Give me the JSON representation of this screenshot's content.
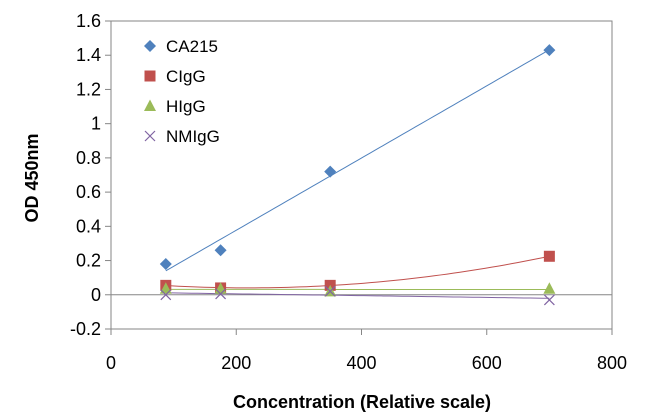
{
  "chart_data": {
    "type": "scatter",
    "title": "",
    "xlabel": "Concentration (Relative scale)",
    "ylabel": "OD 450nm",
    "xlim": [
      0,
      800
    ],
    "ylim": [
      -0.2,
      1.6
    ],
    "x_ticks": [
      "0",
      "200",
      "400",
      "600",
      "800"
    ],
    "y_ticks": [
      "-0.2",
      "0",
      "0.2",
      "0.4",
      "0.6",
      "0.8",
      "1",
      "1.2",
      "1.4",
      "1.6"
    ],
    "grid": false,
    "legend_position": "top-left",
    "series": [
      {
        "name": "CA215",
        "marker": "diamond",
        "color": "#4F81BD",
        "trendline": "linear",
        "points": [
          {
            "x": 87.5,
            "y": 0.18
          },
          {
            "x": 175,
            "y": 0.26
          },
          {
            "x": 350,
            "y": 0.72
          },
          {
            "x": 700,
            "y": 1.43
          }
        ]
      },
      {
        "name": "CIgG",
        "marker": "square",
        "color": "#C0504D",
        "trendline": "polynomial",
        "points": [
          {
            "x": 87.5,
            "y": 0.055
          },
          {
            "x": 175,
            "y": 0.04
          },
          {
            "x": 350,
            "y": 0.055
          },
          {
            "x": 700,
            "y": 0.225
          }
        ]
      },
      {
        "name": "HIgG",
        "marker": "triangle",
        "color": "#9BBB59",
        "trendline": "linear",
        "points": [
          {
            "x": 87.5,
            "y": 0.035
          },
          {
            "x": 175,
            "y": 0.035
          },
          {
            "x": 350,
            "y": 0.02
          },
          {
            "x": 700,
            "y": 0.035
          }
        ]
      },
      {
        "name": "NMIgG",
        "marker": "x",
        "color": "#8064A2",
        "trendline": "linear",
        "points": [
          {
            "x": 87.5,
            "y": 0.0
          },
          {
            "x": 175,
            "y": 0.005
          },
          {
            "x": 350,
            "y": 0.02
          },
          {
            "x": 700,
            "y": -0.03
          }
        ]
      }
    ]
  }
}
